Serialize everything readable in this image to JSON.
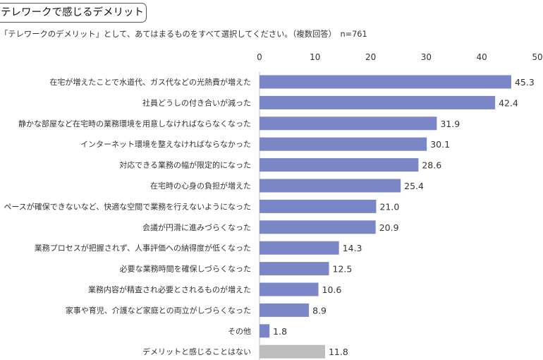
{
  "header": {
    "title": "テレワークで感じるデメリット",
    "subtitle": "「テレワークのデメリット」として、あてはまるものをすべて選択してください。（複数回答）　n=761"
  },
  "colors": {
    "bar": "#7b86c6",
    "bar_last": "#bdbdbd"
  },
  "chart_data": {
    "type": "bar",
    "orientation": "horizontal",
    "xlim": [
      0,
      50
    ],
    "ticks": [
      0,
      10,
      20,
      30,
      40,
      50
    ],
    "grid": false,
    "categories": [
      "在宅が増えたことで水道代、ガス代などの光熱費が増えた",
      "社員どうしの付き合いが減った",
      "静かな部屋など在宅時の業務環境を用意しなければならなくなった",
      "インターネット環境を整えなければならなかった",
      "対応できる業務の幅が限定的になった",
      "在宅時の心身の負担が増えた",
      "ペースが確保できないなど、快適な空間で業務を行えないようになった",
      "会議が円滑に進みづらくなった",
      "業務プロセスが把握されず、人事評価への納得度が低くなった",
      "必要な業務時間を確保しづらくなった",
      "業務内容が精査され必要とされるものが増えた",
      "家事や育児、介護など家庭との両立がしづらくなった",
      "その他",
      "デメリットと感じることはない"
    ],
    "values": [
      45.3,
      42.4,
      31.9,
      30.1,
      28.6,
      25.4,
      21.0,
      20.9,
      14.3,
      12.5,
      10.6,
      8.9,
      1.8,
      11.8
    ],
    "value_labels": [
      "45.3",
      "42.4",
      "31.9",
      "30.1",
      "28.6",
      "25.4",
      "21.0",
      "20.9",
      "14.3",
      "12.5",
      "10.6",
      "8.9",
      "1.8",
      "11.8"
    ]
  }
}
